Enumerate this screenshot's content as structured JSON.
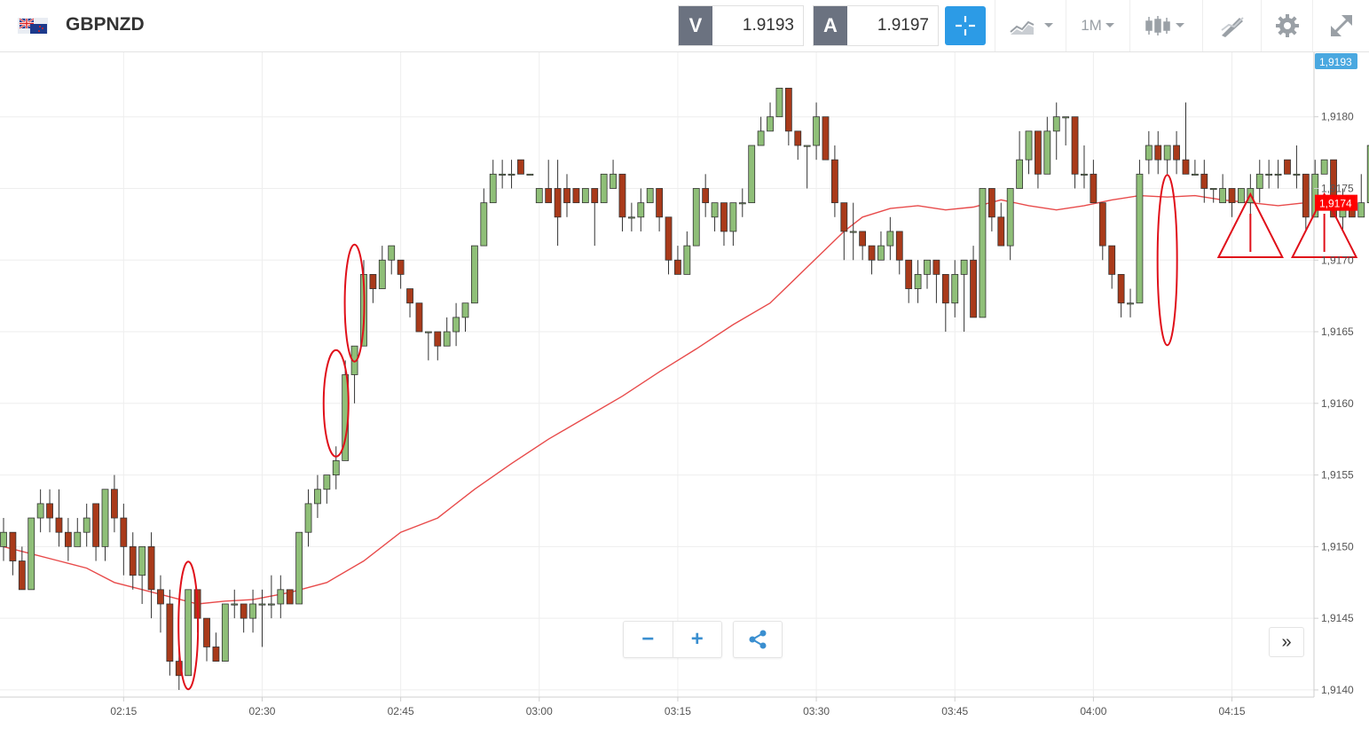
{
  "header": {
    "symbol": "GBPNZD",
    "sell": {
      "label": "V",
      "price": "1.9193"
    },
    "buy": {
      "label": "A",
      "price": "1.9197"
    },
    "timeframe": "1M",
    "icons": [
      "flag-icon",
      "crosshair-icon",
      "chart-type-icon",
      "candles-icon",
      "drawing-icon",
      "gear-icon",
      "expand-icon"
    ]
  },
  "controls": {
    "zoom_out": "−",
    "zoom_in": "+",
    "forward": "»"
  },
  "colors": {
    "up": "#8fbf78",
    "down": "#a93a1a",
    "ma": "#e84b4b",
    "accent": "#2c9be6",
    "last_price_tag": "#ff0000",
    "top_price_tag": "#4aa8e0"
  },
  "chart_data": {
    "type": "candlestick",
    "y_ticks": [
      "1,9140",
      "1,9145",
      "1,9150",
      "1,9155",
      "1,9160",
      "1,9165",
      "1,9170",
      "1,9175",
      "1,9180"
    ],
    "x_ticks": [
      "02:15",
      "02:30",
      "02:45",
      "03:00",
      "03:15",
      "03:30",
      "03:45",
      "04:00",
      "04:15"
    ],
    "price_tags": {
      "top": "1,9193",
      "last": "1,9174"
    },
    "ylim": [
      1.91395,
      1.91845
    ],
    "start_minute": 2,
    "candles": [
      [
        1.915,
        1.9151,
        1.9152,
        1.9149
      ],
      [
        1.9151,
        1.9149,
        1.9151,
        1.9148
      ],
      [
        1.9149,
        1.9147,
        1.915,
        1.9147
      ],
      [
        1.9147,
        1.9152,
        1.9152,
        1.9147
      ],
      [
        1.9152,
        1.9153,
        1.9154,
        1.9151
      ],
      [
        1.9153,
        1.9152,
        1.9154,
        1.9151
      ],
      [
        1.9152,
        1.9151,
        1.9154,
        1.915
      ],
      [
        1.9151,
        1.915,
        1.9152,
        1.9149
      ],
      [
        1.915,
        1.9151,
        1.9152,
        1.915
      ],
      [
        1.9151,
        1.9152,
        1.9153,
        1.915
      ],
      [
        1.9153,
        1.915,
        1.9153,
        1.9149
      ],
      [
        1.915,
        1.9154,
        1.9154,
        1.9149
      ],
      [
        1.9154,
        1.9152,
        1.9155,
        1.9151
      ],
      [
        1.9152,
        1.915,
        1.9153,
        1.9148
      ],
      [
        1.915,
        1.9148,
        1.9151,
        1.9147
      ],
      [
        1.9148,
        1.915,
        1.915,
        1.9146
      ],
      [
        1.915,
        1.9147,
        1.9151,
        1.9145
      ],
      [
        1.9147,
        1.9146,
        1.9148,
        1.9144
      ],
      [
        1.9146,
        1.9142,
        1.9147,
        1.9141
      ],
      [
        1.9142,
        1.9141,
        1.9143,
        1.914
      ],
      [
        1.9141,
        1.9147,
        1.9147,
        1.9141
      ],
      [
        1.9147,
        1.9145,
        1.9147,
        1.9144
      ],
      [
        1.9145,
        1.9143,
        1.9145,
        1.9142
      ],
      [
        1.9143,
        1.9142,
        1.9144,
        1.9142
      ],
      [
        1.9142,
        1.9146,
        1.9146,
        1.9142
      ],
      [
        1.9146,
        1.9146,
        1.9147,
        1.9145
      ],
      [
        1.9146,
        1.9145,
        1.9146,
        1.9144
      ],
      [
        1.9145,
        1.9146,
        1.9147,
        1.9144
      ],
      [
        1.9146,
        1.9146,
        1.9147,
        1.9143
      ],
      [
        1.9146,
        1.9146,
        1.9148,
        1.9145
      ],
      [
        1.9146,
        1.9147,
        1.9148,
        1.9145
      ],
      [
        1.9147,
        1.9146,
        1.9147,
        1.9146
      ],
      [
        1.9146,
        1.9151,
        1.9151,
        1.9146
      ],
      [
        1.9151,
        1.9153,
        1.9154,
        1.915
      ],
      [
        1.9153,
        1.9154,
        1.9155,
        1.9152
      ],
      [
        1.9154,
        1.9155,
        1.9155,
        1.9153
      ],
      [
        1.9155,
        1.9156,
        1.9157,
        1.9154
      ],
      [
        1.9156,
        1.9162,
        1.9163,
        1.9156
      ],
      [
        1.9162,
        1.9164,
        1.9164,
        1.916
      ],
      [
        1.9164,
        1.9169,
        1.917,
        1.9164
      ],
      [
        1.9169,
        1.9168,
        1.9169,
        1.9167
      ],
      [
        1.9168,
        1.917,
        1.9171,
        1.9168
      ],
      [
        1.917,
        1.9171,
        1.9171,
        1.9169
      ],
      [
        1.917,
        1.9169,
        1.917,
        1.9168
      ],
      [
        1.9168,
        1.9167,
        1.9168,
        1.9166
      ],
      [
        1.9167,
        1.9165,
        1.9167,
        1.9165
      ],
      [
        1.9165,
        1.9165,
        1.9165,
        1.9163
      ],
      [
        1.9165,
        1.9164,
        1.9165,
        1.9163
      ],
      [
        1.9164,
        1.9165,
        1.9166,
        1.9164
      ],
      [
        1.9165,
        1.9166,
        1.9167,
        1.9164
      ],
      [
        1.9166,
        1.9167,
        1.9167,
        1.9165
      ],
      [
        1.9167,
        1.9171,
        1.9171,
        1.9167
      ],
      [
        1.9171,
        1.9174,
        1.9175,
        1.9171
      ],
      [
        1.9174,
        1.9176,
        1.9177,
        1.9174
      ],
      [
        1.9176,
        1.9176,
        1.9177,
        1.9175
      ],
      [
        1.9176,
        1.9176,
        1.9177,
        1.9175
      ],
      [
        1.9177,
        1.9176,
        1.9177,
        1.9176
      ],
      [
        1.9176,
        1.9176,
        1.9176,
        1.9176
      ],
      [
        1.9174,
        1.9175,
        1.9175,
        1.9174
      ],
      [
        1.9175,
        1.9174,
        1.9177,
        1.9174
      ],
      [
        1.9175,
        1.9173,
        1.9177,
        1.9171
      ],
      [
        1.9175,
        1.9174,
        1.9176,
        1.9173
      ],
      [
        1.9175,
        1.9174,
        1.9175,
        1.9174
      ],
      [
        1.9174,
        1.9175,
        1.9175,
        1.9174
      ],
      [
        1.9175,
        1.9174,
        1.9175,
        1.9171
      ],
      [
        1.9174,
        1.9176,
        1.9176,
        1.9174
      ],
      [
        1.9175,
        1.9176,
        1.9177,
        1.9175
      ],
      [
        1.9176,
        1.9173,
        1.9176,
        1.9172
      ],
      [
        1.9173,
        1.9173,
        1.9174,
        1.9172
      ],
      [
        1.9173,
        1.9174,
        1.9175,
        1.9172
      ],
      [
        1.9174,
        1.9175,
        1.9175,
        1.9174
      ],
      [
        1.9175,
        1.9173,
        1.9175,
        1.9172
      ],
      [
        1.9173,
        1.917,
        1.9173,
        1.9169
      ],
      [
        1.917,
        1.9169,
        1.9171,
        1.9169
      ],
      [
        1.9169,
        1.9171,
        1.9172,
        1.9169
      ],
      [
        1.9171,
        1.9175,
        1.9175,
        1.9171
      ],
      [
        1.9175,
        1.9174,
        1.9176,
        1.9173
      ],
      [
        1.9173,
        1.9174,
        1.9174,
        1.9172
      ],
      [
        1.9174,
        1.9172,
        1.9174,
        1.9171
      ],
      [
        1.9172,
        1.9174,
        1.9174,
        1.9171
      ],
      [
        1.9174,
        1.9174,
        1.9175,
        1.9173
      ],
      [
        1.9174,
        1.9178,
        1.9178,
        1.9174
      ],
      [
        1.9178,
        1.9179,
        1.918,
        1.9178
      ],
      [
        1.9179,
        1.918,
        1.9181,
        1.9179
      ],
      [
        1.918,
        1.9182,
        1.9182,
        1.918
      ],
      [
        1.9182,
        1.9179,
        1.9182,
        1.9178
      ],
      [
        1.9179,
        1.9178,
        1.9179,
        1.9177
      ],
      [
        1.9178,
        1.9178,
        1.9178,
        1.9175
      ],
      [
        1.9178,
        1.918,
        1.9181,
        1.9177
      ],
      [
        1.918,
        1.9177,
        1.918,
        1.9177
      ],
      [
        1.9177,
        1.9174,
        1.9178,
        1.9173
      ],
      [
        1.9174,
        1.9172,
        1.9174,
        1.917
      ],
      [
        1.9172,
        1.9172,
        1.9174,
        1.917
      ],
      [
        1.9172,
        1.9171,
        1.9172,
        1.917
      ],
      [
        1.9171,
        1.917,
        1.9171,
        1.9169
      ],
      [
        1.917,
        1.9171,
        1.9172,
        1.917
      ],
      [
        1.9171,
        1.9172,
        1.9173,
        1.917
      ],
      [
        1.9172,
        1.917,
        1.9172,
        1.9169
      ],
      [
        1.917,
        1.9168,
        1.917,
        1.9167
      ],
      [
        1.9168,
        1.9169,
        1.917,
        1.9167
      ],
      [
        1.9169,
        1.917,
        1.917,
        1.9168
      ],
      [
        1.917,
        1.9169,
        1.917,
        1.9167
      ],
      [
        1.9169,
        1.9167,
        1.9169,
        1.9165
      ],
      [
        1.9167,
        1.9169,
        1.917,
        1.9166
      ],
      [
        1.9169,
        1.917,
        1.917,
        1.9165
      ],
      [
        1.917,
        1.9166,
        1.9171,
        1.9166
      ],
      [
        1.9166,
        1.9175,
        1.9175,
        1.9166
      ],
      [
        1.9175,
        1.9173,
        1.9175,
        1.9172
      ],
      [
        1.9173,
        1.9171,
        1.9174,
        1.9171
      ],
      [
        1.9171,
        1.9175,
        1.9175,
        1.917
      ],
      [
        1.9175,
        1.9177,
        1.9179,
        1.9175
      ],
      [
        1.9177,
        1.9179,
        1.9179,
        1.9176
      ],
      [
        1.9179,
        1.9176,
        1.9179,
        1.9175
      ],
      [
        1.9176,
        1.9179,
        1.918,
        1.9176
      ],
      [
        1.9179,
        1.918,
        1.9181,
        1.9177
      ],
      [
        1.918,
        1.918,
        1.918,
        1.9178
      ],
      [
        1.918,
        1.9176,
        1.918,
        1.9175
      ],
      [
        1.9176,
        1.9176,
        1.9178,
        1.9175
      ],
      [
        1.9176,
        1.9174,
        1.9177,
        1.9174
      ],
      [
        1.9174,
        1.9171,
        1.9174,
        1.917
      ],
      [
        1.9171,
        1.9169,
        1.9171,
        1.9168
      ],
      [
        1.9169,
        1.9167,
        1.9169,
        1.9166
      ],
      [
        1.9167,
        1.9167,
        1.9168,
        1.9166
      ],
      [
        1.9167,
        1.9176,
        1.9177,
        1.9167
      ],
      [
        1.9177,
        1.9178,
        1.9179,
        1.9176
      ],
      [
        1.9178,
        1.9177,
        1.9179,
        1.9176
      ],
      [
        1.9177,
        1.9178,
        1.9178,
        1.9176
      ],
      [
        1.9178,
        1.9177,
        1.9179,
        1.9176
      ],
      [
        1.9177,
        1.9176,
        1.9181,
        1.9176
      ],
      [
        1.9176,
        1.9176,
        1.9177,
        1.9176
      ],
      [
        1.9176,
        1.9175,
        1.9177,
        1.9174
      ],
      [
        1.9175,
        1.9175,
        1.9175,
        1.9174
      ],
      [
        1.9174,
        1.9175,
        1.9176,
        1.9174
      ],
      [
        1.9175,
        1.9174,
        1.9175,
        1.9173
      ],
      [
        1.9174,
        1.9175,
        1.9175,
        1.9174
      ],
      [
        1.9174,
        1.9175,
        1.9176,
        1.9173
      ],
      [
        1.9175,
        1.9176,
        1.9177,
        1.9174
      ],
      [
        1.9176,
        1.9176,
        1.9177,
        1.9175
      ],
      [
        1.9176,
        1.9176,
        1.9177,
        1.9175
      ],
      [
        1.9177,
        1.9176,
        1.9177,
        1.9176
      ],
      [
        1.9176,
        1.9176,
        1.9178,
        1.9175
      ],
      [
        1.9176,
        1.9173,
        1.9176,
        1.9172
      ],
      [
        1.9173,
        1.9176,
        1.9177,
        1.9173
      ],
      [
        1.9176,
        1.9177,
        1.9177,
        1.9176
      ],
      [
        1.9177,
        1.9173,
        1.9177,
        1.9173
      ],
      [
        1.9173,
        1.9174,
        1.9175,
        1.9172
      ],
      [
        1.9174,
        1.9173,
        1.9174,
        1.9173
      ],
      [
        1.9173,
        1.9174,
        1.9176,
        1.9173
      ],
      [
        1.9174,
        1.9178,
        1.9178,
        1.9174
      ]
    ],
    "moving_average": [
      [
        2,
        1.915
      ],
      [
        5,
        1.91495
      ],
      [
        8,
        1.9149
      ],
      [
        11,
        1.91485
      ],
      [
        14,
        1.91475
      ],
      [
        17,
        1.9147
      ],
      [
        20,
        1.91465
      ],
      [
        23,
        1.9146
      ],
      [
        26,
        1.91462
      ],
      [
        29,
        1.91463
      ],
      [
        33,
        1.91468
      ],
      [
        37,
        1.91475
      ],
      [
        41,
        1.9149
      ],
      [
        45,
        1.9151
      ],
      [
        49,
        1.9152
      ],
      [
        53,
        1.9154
      ],
      [
        57,
        1.91558
      ],
      [
        61,
        1.91575
      ],
      [
        65,
        1.9159
      ],
      [
        69,
        1.91605
      ],
      [
        73,
        1.91622
      ],
      [
        77,
        1.91638
      ],
      [
        81,
        1.91655
      ],
      [
        85,
        1.9167
      ],
      [
        89,
        1.91695
      ],
      [
        93,
        1.9172
      ],
      [
        95,
        1.9173
      ],
      [
        98,
        1.91736
      ],
      [
        101,
        1.91738
      ],
      [
        104,
        1.91735
      ],
      [
        107,
        1.91737
      ],
      [
        110,
        1.91742
      ],
      [
        113,
        1.91738
      ],
      [
        116,
        1.91735
      ],
      [
        119,
        1.91738
      ],
      [
        122,
        1.91742
      ],
      [
        125,
        1.91745
      ],
      [
        128,
        1.91744
      ],
      [
        131,
        1.91745
      ],
      [
        134,
        1.91742
      ],
      [
        137,
        1.9174
      ],
      [
        140,
        1.91738
      ],
      [
        143,
        1.9174
      ]
    ],
    "annotations": {
      "ellipses": [
        [
          22,
          1.91445
        ],
        [
          38,
          1.916
        ],
        [
          40,
          1.9167
        ],
        [
          128,
          1.917
        ]
      ],
      "warnings": [
        137,
        145
      ]
    }
  }
}
